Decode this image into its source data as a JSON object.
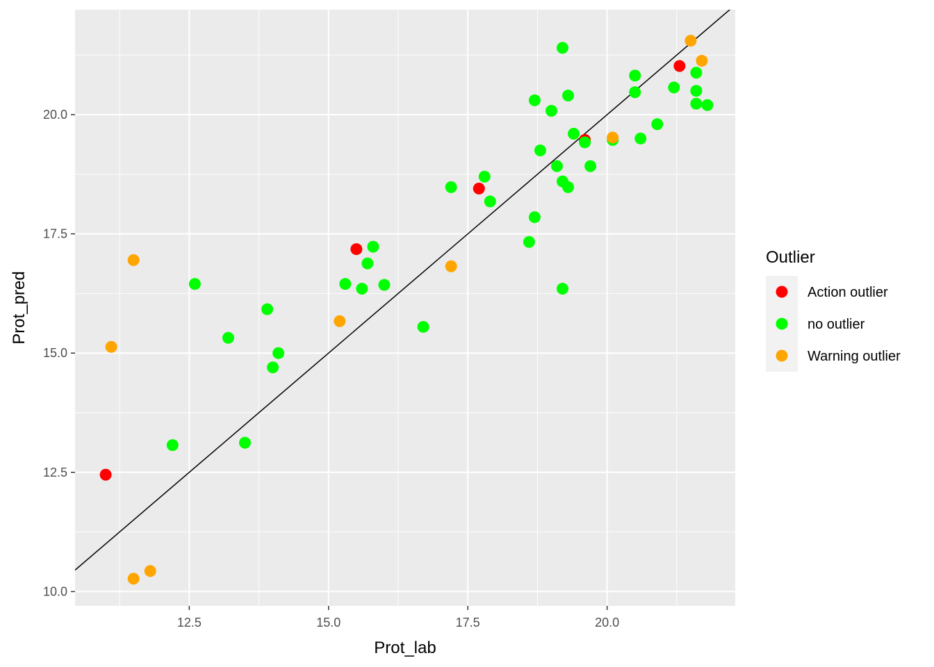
{
  "chart_data": {
    "type": "scatter",
    "xlabel": "Prot_lab",
    "ylabel": "Prot_pred",
    "xlim": [
      10.45,
      22.3
    ],
    "ylim": [
      9.7,
      22.2
    ],
    "x_ticks": [
      12.5,
      15.0,
      17.5,
      20.0
    ],
    "y_ticks": [
      10.0,
      12.5,
      15.0,
      17.5,
      20.0
    ],
    "x_tick_labels": [
      "12.5",
      "15.0",
      "17.5",
      "20.0"
    ],
    "y_tick_labels": [
      "10.0",
      "12.5",
      "15.0",
      "17.5",
      "20.0"
    ],
    "grid": true,
    "reference_line": {
      "intercept": 0,
      "slope": 1,
      "color": "#000000"
    },
    "legend": {
      "title": "Outlier",
      "position": "right",
      "entries": [
        {
          "label": "Action outlier",
          "color": "#FF0000"
        },
        {
          "label": "no outlier",
          "color": "#00FF00"
        },
        {
          "label": "Warning outlier",
          "color": "#FFA500"
        }
      ]
    },
    "series": [
      {
        "name": "Action outlier",
        "color": "#FF0000",
        "points": [
          [
            11.0,
            12.45
          ],
          [
            15.5,
            17.18
          ],
          [
            17.7,
            18.45
          ],
          [
            19.6,
            19.47
          ],
          [
            21.3,
            21.02
          ]
        ]
      },
      {
        "name": "no outlier",
        "color": "#00FF00",
        "points": [
          [
            12.2,
            13.07
          ],
          [
            12.6,
            16.45
          ],
          [
            13.2,
            15.32
          ],
          [
            13.5,
            13.12
          ],
          [
            13.9,
            15.92
          ],
          [
            14.0,
            14.7
          ],
          [
            14.1,
            15.0
          ],
          [
            15.3,
            16.45
          ],
          [
            15.6,
            16.35
          ],
          [
            15.7,
            16.88
          ],
          [
            15.8,
            17.23
          ],
          [
            16.0,
            16.43
          ],
          [
            16.7,
            15.55
          ],
          [
            17.2,
            18.48
          ],
          [
            17.8,
            18.7
          ],
          [
            17.9,
            18.18
          ],
          [
            18.6,
            17.33
          ],
          [
            18.7,
            17.85
          ],
          [
            18.7,
            20.3
          ],
          [
            18.8,
            19.25
          ],
          [
            19.0,
            20.08
          ],
          [
            19.1,
            18.92
          ],
          [
            19.2,
            18.6
          ],
          [
            19.2,
            16.35
          ],
          [
            19.2,
            21.4
          ],
          [
            19.3,
            18.48
          ],
          [
            19.3,
            20.4
          ],
          [
            19.4,
            19.6
          ],
          [
            19.6,
            19.42
          ],
          [
            19.7,
            18.92
          ],
          [
            20.1,
            19.47
          ],
          [
            20.5,
            20.82
          ],
          [
            20.5,
            20.47
          ],
          [
            20.6,
            19.5
          ],
          [
            20.9,
            19.8
          ],
          [
            21.2,
            20.57
          ],
          [
            21.6,
            20.88
          ],
          [
            21.6,
            20.5
          ],
          [
            21.6,
            20.23
          ],
          [
            21.8,
            20.2
          ]
        ]
      },
      {
        "name": "Warning outlier",
        "color": "#FFA500",
        "points": [
          [
            11.1,
            15.13
          ],
          [
            11.5,
            16.95
          ],
          [
            11.5,
            10.27
          ],
          [
            11.8,
            10.43
          ],
          [
            15.2,
            15.67
          ],
          [
            17.2,
            16.82
          ],
          [
            20.1,
            19.52
          ],
          [
            21.5,
            21.55
          ],
          [
            21.7,
            21.13
          ]
        ]
      }
    ]
  }
}
